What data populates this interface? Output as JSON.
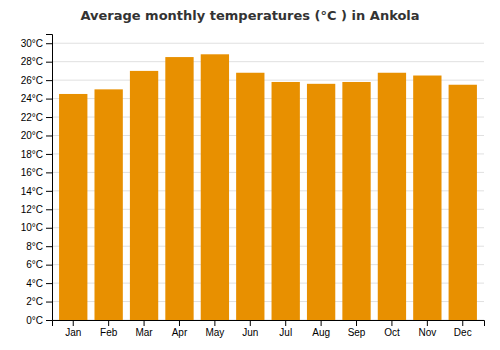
{
  "chart_data": {
    "type": "bar",
    "title": "Average monthly temperatures (°C ) in Ankola",
    "categories": [
      "Jan",
      "Feb",
      "Mar",
      "Apr",
      "May",
      "Jun",
      "Jul",
      "Aug",
      "Sep",
      "Oct",
      "Nov",
      "Dec"
    ],
    "values": [
      24.5,
      25.0,
      27.0,
      28.5,
      28.8,
      26.8,
      25.8,
      25.6,
      25.8,
      26.8,
      26.5,
      25.5
    ],
    "color": "#E89000",
    "ylim": [
      0,
      31
    ],
    "yticks": [
      {
        "value": 0,
        "label": "0°C"
      },
      {
        "value": 2,
        "label": "2°C"
      },
      {
        "value": 4,
        "label": "4°C"
      },
      {
        "value": 6,
        "label": "6°C"
      },
      {
        "value": 8,
        "label": "8°C"
      },
      {
        "value": 10,
        "label": "10°C"
      },
      {
        "value": 12,
        "label": "12°C"
      },
      {
        "value": 14,
        "label": "14°C"
      },
      {
        "value": 16,
        "label": "16°C"
      },
      {
        "value": 18,
        "label": "18°C"
      },
      {
        "value": 20,
        "label": "20°C"
      },
      {
        "value": 22,
        "label": "22°C"
      },
      {
        "value": 24,
        "label": "24°C"
      },
      {
        "value": 26,
        "label": "26°C"
      },
      {
        "value": 28,
        "label": "28°C"
      },
      {
        "value": 30,
        "label": "30°C"
      }
    ],
    "grid": true
  }
}
